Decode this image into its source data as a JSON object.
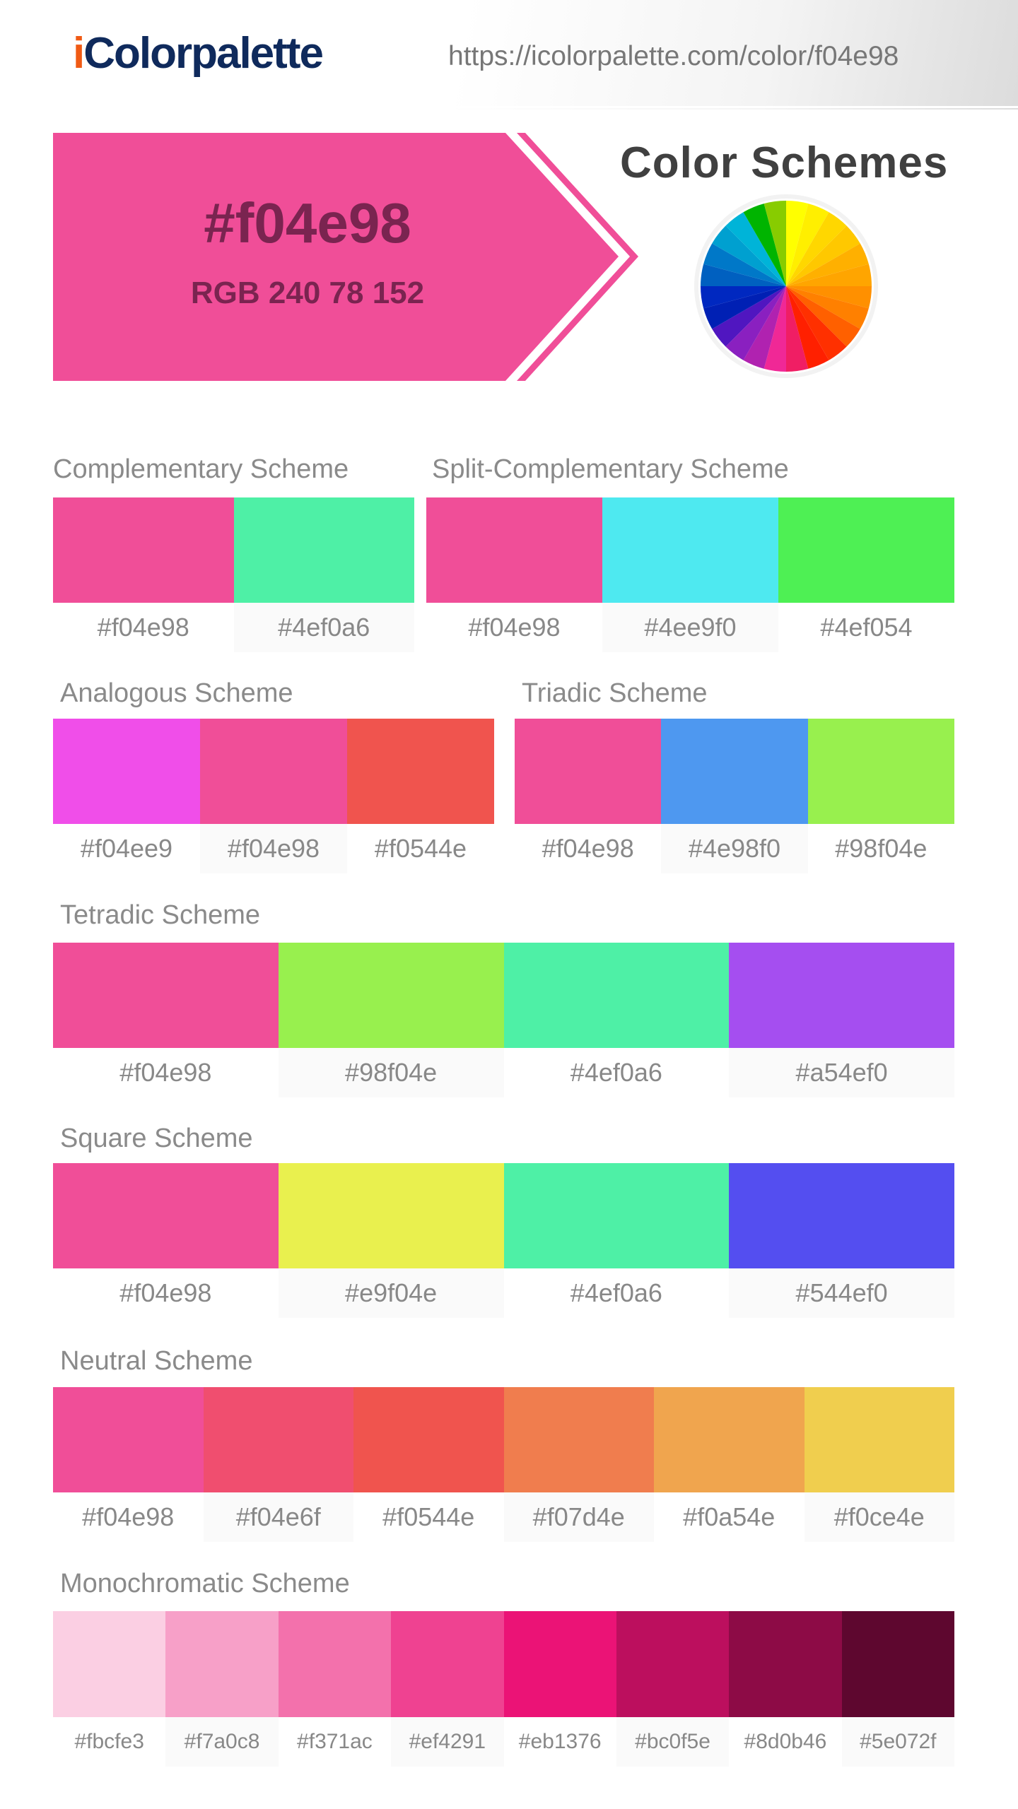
{
  "header": {
    "logo_prefix": "i",
    "logo_rest": "Colorpalette",
    "url": "https://icolorpalette.com/color/f04e98"
  },
  "hero": {
    "hex": "#f04e98",
    "rgb": "RGB 240 78 152",
    "color": "#f04e98",
    "text_color": "#7a2450"
  },
  "color_schemes_title": "Color Schemes",
  "color_wheel_colors": [
    "#ffff00",
    "#ffef00",
    "#ffd700",
    "#ffc800",
    "#ffb000",
    "#ffa500",
    "#ff9000",
    "#ff8000",
    "#ff6000",
    "#ff3000",
    "#ff2000",
    "#f01e64",
    "#f02896",
    "#b022b0",
    "#8a20c0",
    "#5016c0",
    "#0020b4",
    "#0028c0",
    "#0060c0",
    "#0078c8",
    "#00a0d0",
    "#00b4d8",
    "#00b400",
    "#88cc00"
  ],
  "schemes": [
    {
      "title": "Complementary Scheme",
      "colors": [
        "#f04e98",
        "#4ef0a6"
      ]
    },
    {
      "title": "Split-Complementary Scheme",
      "colors": [
        "#f04e98",
        "#4ee9f0",
        "#4ef054"
      ]
    },
    {
      "title": "Analogous Scheme",
      "colors": [
        "#f04ee9",
        "#f04e98",
        "#f0544e"
      ]
    },
    {
      "title": "Triadic Scheme",
      "colors": [
        "#f04e98",
        "#4e98f0",
        "#98f04e"
      ]
    },
    {
      "title": "Tetradic Scheme",
      "colors": [
        "#f04e98",
        "#98f04e",
        "#4ef0a6",
        "#a54ef0"
      ]
    },
    {
      "title": "Square Scheme",
      "colors": [
        "#f04e98",
        "#e9f04e",
        "#4ef0a6",
        "#544ef0"
      ]
    },
    {
      "title": "Neutral Scheme",
      "colors": [
        "#f04e98",
        "#f04e6f",
        "#f0544e",
        "#f07d4e",
        "#f0a54e",
        "#f0ce4e"
      ]
    },
    {
      "title": "Monochromatic Scheme",
      "colors": [
        "#fbcfe3",
        "#f7a0c8",
        "#f371ac",
        "#ef4291",
        "#eb1376",
        "#bc0f5e",
        "#8d0b46",
        "#5e072f"
      ]
    }
  ]
}
